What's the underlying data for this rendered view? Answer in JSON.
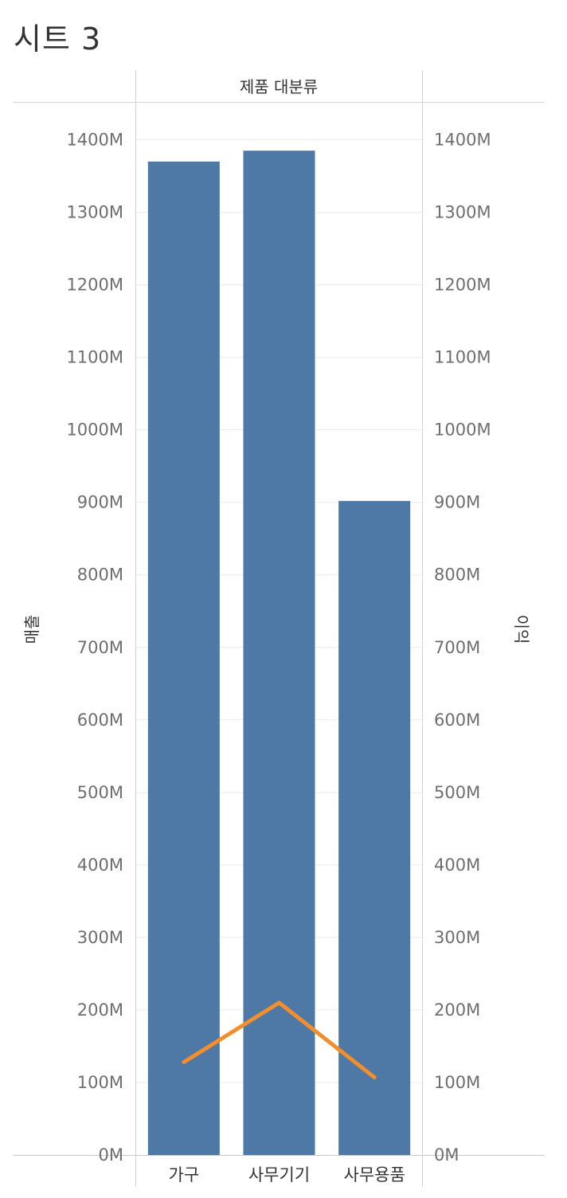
{
  "sheet_title": "시트 3",
  "chart_data": {
    "type": "bar",
    "column_header": "제품 대분류",
    "categories": [
      "가구",
      "사무기기",
      "사무용품"
    ],
    "series": [
      {
        "name": "매출",
        "mark": "bar",
        "axis": "left",
        "values": [
          1370,
          1385,
          902
        ],
        "color": "#4e79a7"
      },
      {
        "name": "이익",
        "mark": "line",
        "axis": "right",
        "values": [
          128,
          210,
          107
        ],
        "color": "#f28e2b"
      }
    ],
    "ylabel": "매출",
    "ylabel_right": "이익",
    "unit_suffix": "M",
    "ylim": [
      0,
      1450
    ],
    "ylim_right": [
      0,
      1450
    ],
    "yticks": [
      0,
      100,
      200,
      300,
      400,
      500,
      600,
      700,
      800,
      900,
      1000,
      1100,
      1200,
      1300,
      1400
    ],
    "tick_labels": [
      "0M",
      "100M",
      "200M",
      "300M",
      "400M",
      "500M",
      "600M",
      "700M",
      "800M",
      "900M",
      "1000M",
      "1100M",
      "1200M",
      "1300M",
      "1400M"
    ],
    "grid": true,
    "legend": "none"
  }
}
